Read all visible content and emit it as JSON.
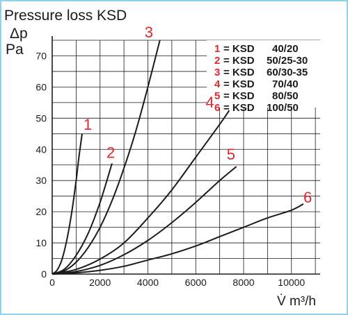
{
  "chart_data": {
    "type": "line",
    "title": "Pressure loss KSD",
    "ylabel_symbol": "Δp",
    "ylabel_unit": "Pa",
    "xlabel": "V̇ m³/h",
    "xlim": [
      0,
      11200
    ],
    "ylim": [
      0,
      75
    ],
    "x_ticks": [
      "0",
      "2000",
      "4000",
      "6000",
      "8000",
      "10000"
    ],
    "y_ticks": [
      "0",
      "10",
      "20",
      "30",
      "40",
      "50",
      "60",
      "70"
    ],
    "grid": true,
    "legend_position": "top-right",
    "colors": {
      "curve": "#1a1a1a",
      "label": "#e3262b",
      "grid": "#1a1a1a",
      "frame": "#8fd3ea"
    },
    "series": [
      {
        "name": "1",
        "legend_eq": "= KSD",
        "legend_size": "40/20",
        "points": [
          [
            0,
            0
          ],
          [
            200,
            1.2
          ],
          [
            400,
            4.5
          ],
          [
            600,
            10.5
          ],
          [
            800,
            19
          ],
          [
            1000,
            30
          ],
          [
            1100,
            36.5
          ],
          [
            1250,
            45
          ]
        ]
      },
      {
        "name": "2",
        "legend_eq": "= KSD",
        "legend_size": "50/25-30",
        "points": [
          [
            0,
            0
          ],
          [
            500,
            1.5
          ],
          [
            1000,
            6
          ],
          [
            1500,
            13
          ],
          [
            2000,
            23
          ],
          [
            2500,
            35.5
          ]
        ]
      },
      {
        "name": "3",
        "legend_eq": "= KSD",
        "legend_size": "60/30-35",
        "points": [
          [
            0,
            0
          ],
          [
            500,
            1
          ],
          [
            1000,
            3.8
          ],
          [
            1500,
            8.5
          ],
          [
            2000,
            15
          ],
          [
            2500,
            23.5
          ],
          [
            3000,
            34
          ],
          [
            3500,
            46
          ],
          [
            4000,
            60
          ],
          [
            4500,
            75
          ]
        ]
      },
      {
        "name": "4",
        "legend_eq": "= KSD",
        "legend_size": "70/40",
        "points": [
          [
            0,
            0
          ],
          [
            1000,
            1.5
          ],
          [
            2000,
            4.8
          ],
          [
            3000,
            10
          ],
          [
            4000,
            18
          ],
          [
            5000,
            27
          ],
          [
            6000,
            37.5
          ],
          [
            7000,
            48
          ],
          [
            7400,
            52.5
          ]
        ]
      },
      {
        "name": "5",
        "legend_eq": "= KSD",
        "legend_size": "80/50",
        "points": [
          [
            0,
            0
          ],
          [
            1000,
            0.8
          ],
          [
            2000,
            2.8
          ],
          [
            3000,
            6.2
          ],
          [
            4000,
            10.8
          ],
          [
            5000,
            16.5
          ],
          [
            6000,
            23
          ],
          [
            7000,
            30
          ],
          [
            7700,
            34.5
          ]
        ]
      },
      {
        "name": "6",
        "legend_eq": "= KSD",
        "legend_size": "100/50",
        "points": [
          [
            0,
            0
          ],
          [
            1000,
            0.4
          ],
          [
            2000,
            1.2
          ],
          [
            3000,
            2.5
          ],
          [
            4000,
            4.5
          ],
          [
            5000,
            6.5
          ],
          [
            6000,
            9
          ],
          [
            7000,
            12
          ],
          [
            8000,
            15
          ],
          [
            9000,
            18
          ],
          [
            10000,
            20.5
          ],
          [
            10500,
            22.5
          ]
        ]
      }
    ]
  }
}
